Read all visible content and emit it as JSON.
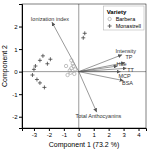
{
  "chart_data": {
    "type": "scatter",
    "x_label": "Component 1 (73.2 %)",
    "y_label": "Component 2",
    "xlim": [
      -3.8,
      4.5
    ],
    "ylim": [
      -2.5,
      3.0
    ],
    "xticks": [
      -3,
      -2,
      -1,
      0,
      1,
      2,
      3,
      4
    ],
    "yticks": [
      -2,
      -1,
      0,
      1,
      2
    ],
    "legend": "upper right",
    "legend_title": "Variety",
    "arrows": {
      "color": "#555555",
      "labels": [
        "Intensity",
        "Hue",
        "TP",
        "MCP",
        "BSA",
        "TT",
        "Total Anthocyanins",
        "Ionization index"
      ],
      "x": [
        2.9,
        2.6,
        3.1,
        2.8,
        3.0,
        3.2,
        1.2,
        -1.8
      ],
      "y": [
        0.75,
        0.25,
        0.4,
        0.0,
        -0.4,
        0.15,
        -1.8,
        2.2
      ]
    },
    "series": [
      {
        "name": "Barbera",
        "color": "#999999",
        "marker": "circle",
        "x": [
          -0.5,
          -0.4,
          -0.55,
          -0.25,
          -0.35,
          -0.6,
          -0.75,
          -0.85,
          -0.3,
          -0.5
        ],
        "y": [
          0.15,
          0.35,
          -0.05,
          0.1,
          0.25,
          0.05,
          -0.15,
          0.25,
          -0.1,
          0.5
        ]
      },
      {
        "name": "Monastrell",
        "color": "#444444",
        "marker": "plus",
        "x": [
          -2.6,
          -2.9,
          -2.4,
          -2.1,
          -3.1,
          -2.8,
          -1.9,
          -2.6,
          -2.3,
          -3.0,
          0.4,
          0.3
        ],
        "y": [
          0.5,
          0.25,
          0.7,
          0.35,
          -0.15,
          -0.35,
          0.55,
          -0.5,
          -0.7,
          0.1,
          1.7,
          1.5
        ]
      }
    ]
  }
}
